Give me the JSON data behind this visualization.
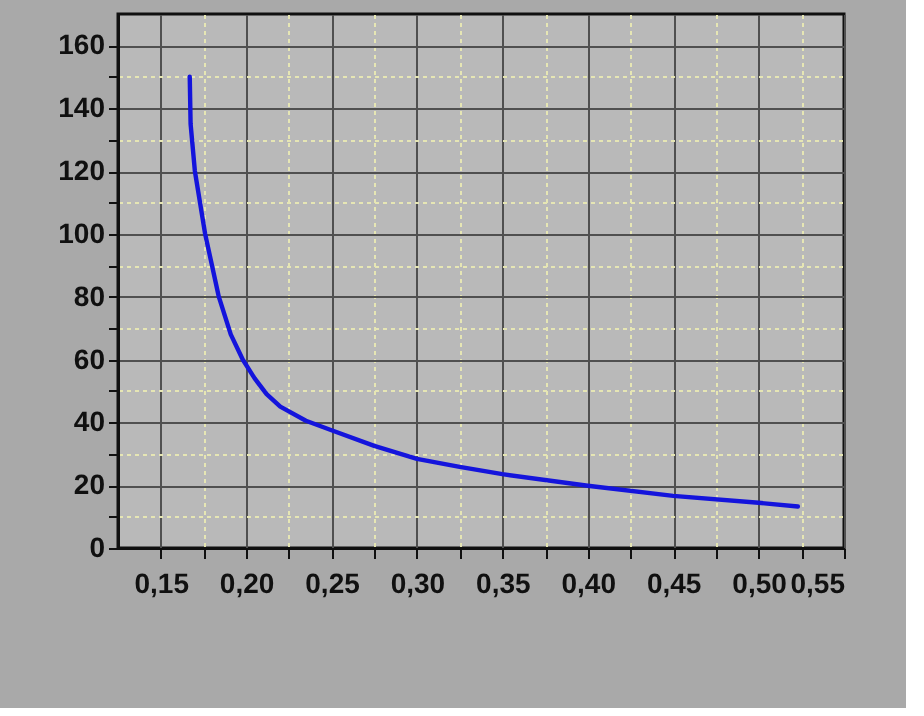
{
  "chart_data": {
    "type": "line",
    "grid": true,
    "marker": "none",
    "line_style": "solid",
    "xlim": [
      0.125,
      0.55
    ],
    "ylim": [
      0,
      170
    ],
    "xticks": [
      {
        "value": 0.15,
        "label": "0,15"
      },
      {
        "value": 0.175,
        "label": null
      },
      {
        "value": 0.2,
        "label": "0,20"
      },
      {
        "value": 0.225,
        "label": null
      },
      {
        "value": 0.25,
        "label": "0,25"
      },
      {
        "value": 0.275,
        "label": null
      },
      {
        "value": 0.3,
        "label": "0,30"
      },
      {
        "value": 0.325,
        "label": null
      },
      {
        "value": 0.35,
        "label": "0,35"
      },
      {
        "value": 0.375,
        "label": null
      },
      {
        "value": 0.4,
        "label": "0,40"
      },
      {
        "value": 0.425,
        "label": null
      },
      {
        "value": 0.45,
        "label": "0,45"
      },
      {
        "value": 0.475,
        "label": null
      },
      {
        "value": 0.5,
        "label": "0,50"
      },
      {
        "value": 0.525,
        "label": null
      },
      {
        "value": 0.55,
        "label": "0,55"
      }
    ],
    "yticks": [
      0,
      {
        "value": 10,
        "label": null
      },
      20,
      {
        "value": 30,
        "label": null
      },
      40,
      {
        "value": 50,
        "label": null
      },
      60,
      {
        "value": 70,
        "label": null
      },
      80,
      {
        "value": 90,
        "label": null
      },
      100,
      {
        "value": 110,
        "label": null
      },
      120,
      {
        "value": 130,
        "label": null
      },
      140,
      {
        "value": 150,
        "label": null
      },
      160
    ],
    "series": [
      {
        "color": "#1414dc",
        "x": [
          0.167,
          0.1675,
          0.17,
          0.176,
          0.184,
          0.191,
          0.198,
          0.205,
          0.212,
          0.22,
          0.235,
          0.25,
          0.275,
          0.3,
          0.325,
          0.35,
          0.4,
          0.45,
          0.5,
          0.523
        ],
        "values": [
          150,
          135,
          120,
          100,
          80,
          68,
          60,
          54,
          49,
          45,
          40.5,
          37.5,
          32.5,
          28.4,
          25.8,
          23.5,
          19.8,
          16.6,
          14.4,
          13.2
        ]
      }
    ]
  }
}
